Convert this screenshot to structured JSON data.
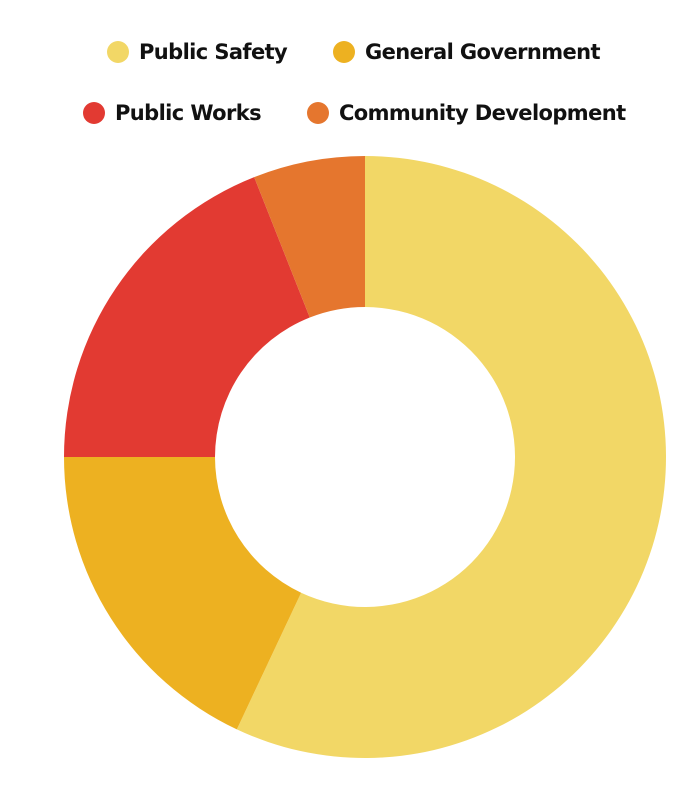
{
  "chart_data": {
    "type": "pie",
    "donut": true,
    "title": "",
    "legend_position": "top",
    "categories": [
      "Public Safety",
      "General Government",
      "Public Works",
      "Community Development"
    ],
    "values": [
      57,
      18,
      19,
      6
    ],
    "colors": [
      "#F2D766",
      "#EDB121",
      "#E23A32",
      "#E5762E"
    ],
    "start_angle_deg": 0,
    "direction": "clockwise"
  }
}
